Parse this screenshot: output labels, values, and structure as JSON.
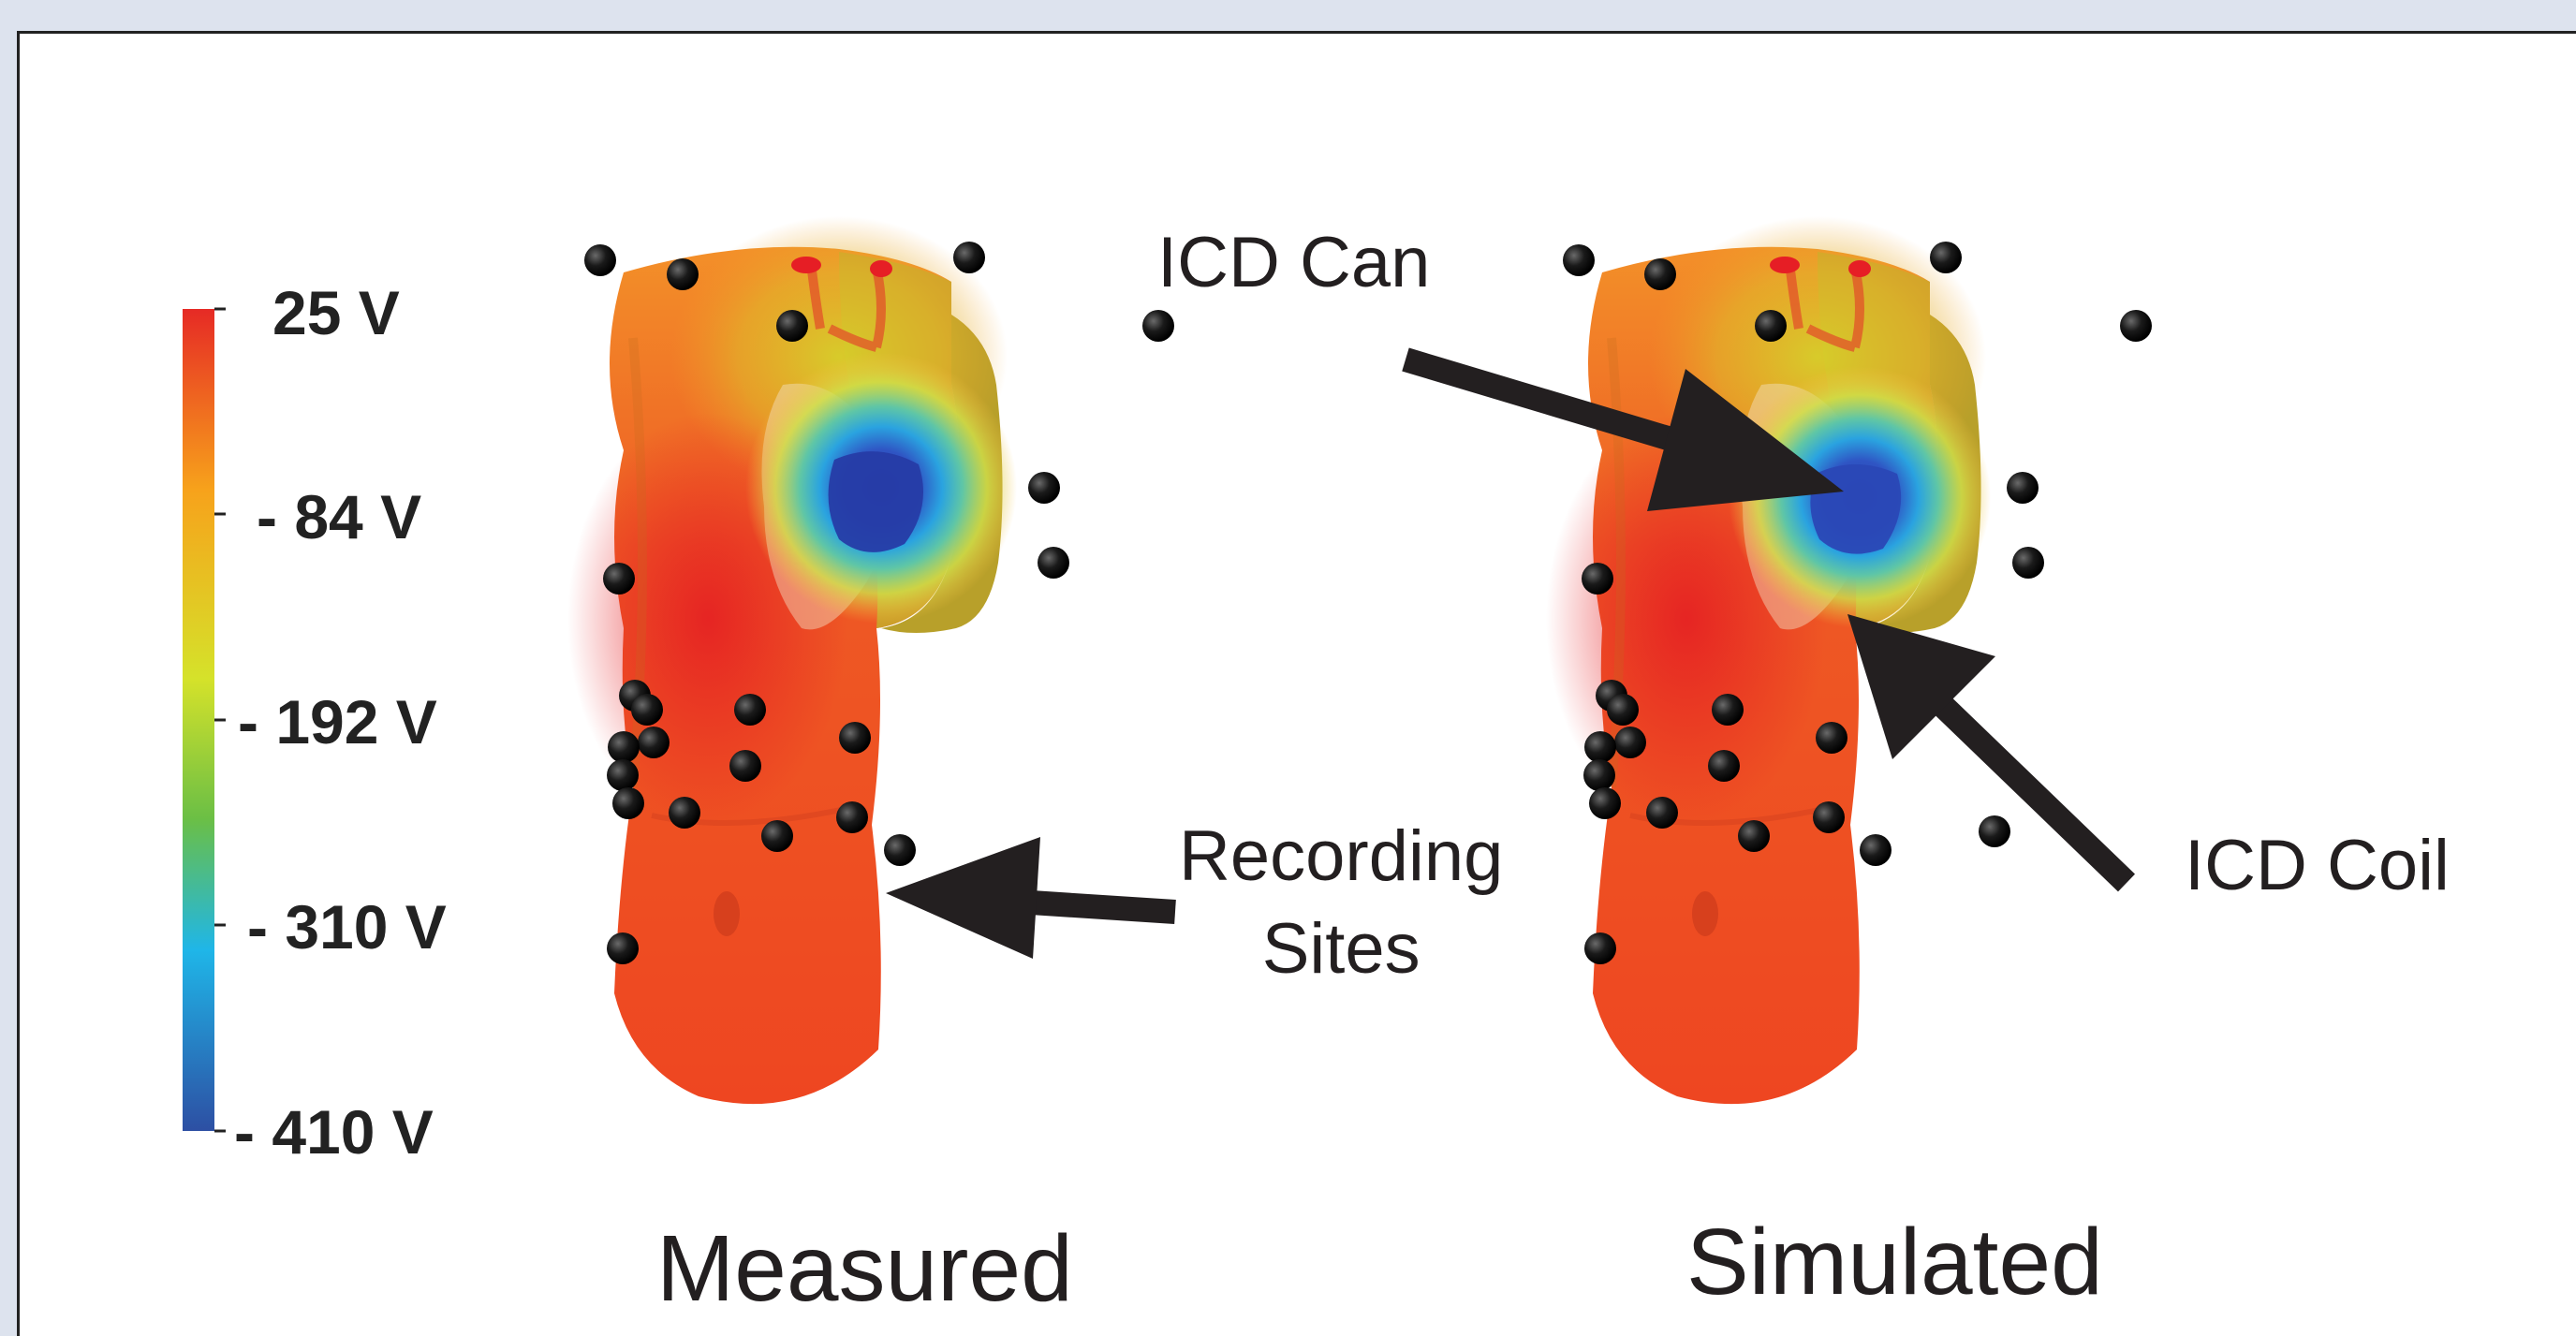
{
  "colorbar": {
    "labels": [
      "25 V",
      "- 84 V",
      "- 192 V",
      "- 310 V",
      "- 410 V"
    ],
    "colors": [
      "#e62a25",
      "#f7a21b",
      "#d5e22a",
      "#6bbf45",
      "#1fb6e8",
      "#2d4fa3"
    ]
  },
  "panels": [
    {
      "title": "Measured"
    },
    {
      "title": "Simulated"
    }
  ],
  "annotations": {
    "icd_can": "ICD Can",
    "icd_coil": "ICD Coil",
    "recording_line1": "Recording",
    "recording_line2": "Sites"
  },
  "colors": {
    "torso_base": "#ee4a24",
    "shoulder": "#c9a52a",
    "can_core": "#2b49b3",
    "arrow": "#231f20",
    "electrode": "#0d0d0d"
  }
}
